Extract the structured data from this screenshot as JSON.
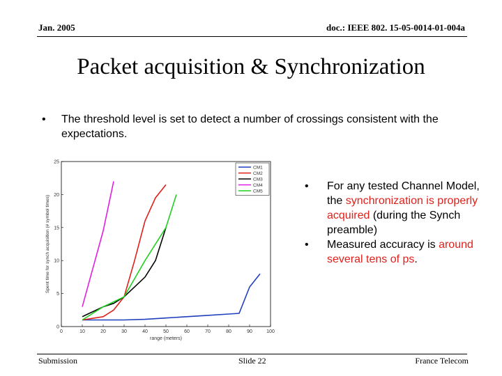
{
  "header": {
    "date": "Jan. 2005",
    "doc_id": "doc.: IEEE 802. 15-05-0014-01-004a"
  },
  "title": "Packet acquisition & Synchronization",
  "main_bullet": "The threshold level is set to detect a number of crossings consistent with the expectations.",
  "right_bullets": {
    "b1_pre": "For any tested Channel Model, the ",
    "b1_red": "synchronization is properly acquired",
    "b1_post": " (during the Synch preamble)",
    "b2_pre": "Measured accuracy is ",
    "b2_red": "around several tens of ps",
    "b2_post": "."
  },
  "bullet_glyph": "•",
  "footer": {
    "left": "Submission",
    "center": "Slide 22",
    "right": "France Telecom"
  },
  "chart_data": {
    "type": "line",
    "xlabel": "range (meters)",
    "ylabel": "Spent time for synch acquisition (# symbol times)",
    "xlim": [
      0,
      100
    ],
    "ylim": [
      0,
      25
    ],
    "x_ticks": [
      0,
      10,
      20,
      30,
      40,
      50,
      60,
      70,
      80,
      90,
      100
    ],
    "y_ticks": [
      0,
      5,
      10,
      15,
      20,
      25
    ],
    "legend_position": "top-right",
    "grid": false,
    "series": [
      {
        "name": "CM1",
        "color": "#1f3fbf",
        "x": [
          10,
          20,
          30,
          40,
          50,
          60,
          70,
          80,
          85,
          90,
          95
        ],
        "y": [
          1.0,
          1.0,
          1.0,
          1.1,
          1.3,
          1.5,
          1.7,
          1.9,
          2.0,
          6.0,
          8.0
        ]
      },
      {
        "name": "CM2",
        "color": "#e0201b",
        "x": [
          10,
          20,
          25,
          30,
          35,
          40,
          45,
          50
        ],
        "y": [
          1.0,
          1.5,
          2.5,
          4.5,
          10.0,
          16.0,
          19.5,
          21.5
        ]
      },
      {
        "name": "CM3",
        "color": "#000000",
        "x": [
          10,
          20,
          25,
          30,
          40,
          45,
          50
        ],
        "y": [
          1.5,
          3.0,
          3.5,
          4.5,
          7.5,
          10.0,
          15.0
        ]
      },
      {
        "name": "CM4",
        "color": "#e020e0",
        "x": [
          10,
          20,
          25
        ],
        "y": [
          3.0,
          14.5,
          22.0
        ]
      },
      {
        "name": "CM5",
        "color": "#20d020",
        "x": [
          10,
          20,
          30,
          40,
          50,
          55
        ],
        "y": [
          1.0,
          3.0,
          4.5,
          10.0,
          15.0,
          20.0
        ]
      }
    ]
  }
}
